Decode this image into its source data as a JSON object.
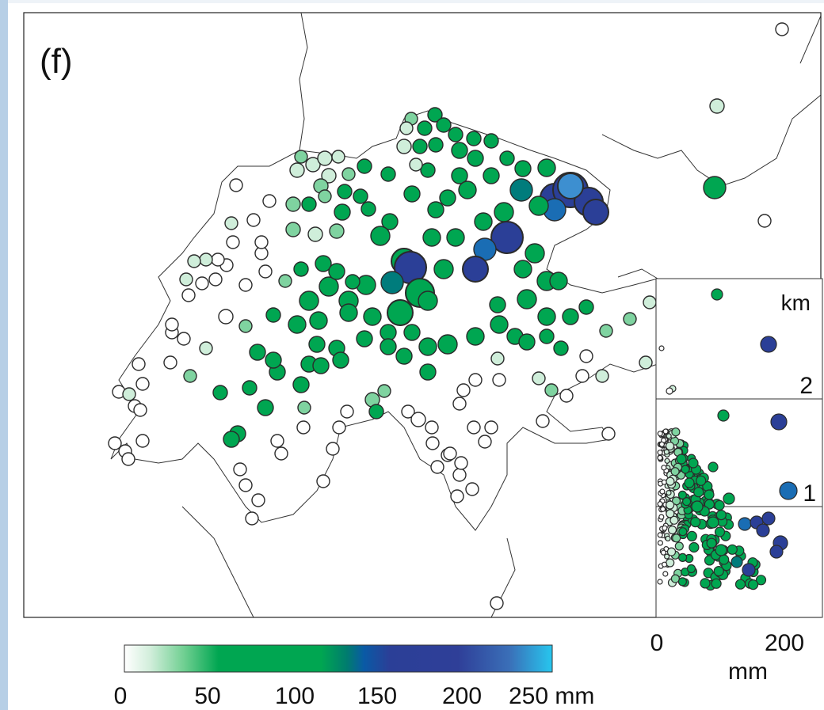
{
  "panel_label": "(f)",
  "colorbar": {
    "ticks": [
      "0",
      "50",
      "100",
      "150",
      "200",
      "250 mm"
    ],
    "stops": [
      {
        "offset": 0.0,
        "color": "#ffffff"
      },
      {
        "offset": 0.06,
        "color": "#d2eedb"
      },
      {
        "offset": 0.14,
        "color": "#6fcf91"
      },
      {
        "offset": 0.22,
        "color": "#00a651"
      },
      {
        "offset": 0.46,
        "color": "#00a651"
      },
      {
        "offset": 0.52,
        "color": "#007c6e"
      },
      {
        "offset": 0.56,
        "color": "#0a5aa5"
      },
      {
        "offset": 0.62,
        "color": "#2b3f97"
      },
      {
        "offset": 0.78,
        "color": "#2f3f98"
      },
      {
        "offset": 0.9,
        "color": "#3a6fb8"
      },
      {
        "offset": 1.0,
        "color": "#27c6ee"
      }
    ]
  },
  "inset": {
    "ylabel_top": "km",
    "y_ticks": [
      "2",
      "1"
    ],
    "x_ticks": [
      "0",
      "200"
    ],
    "x_unit": "mm"
  },
  "colors": {
    "map_line": "#333333",
    "station_stroke": "#2b2b2b",
    "low": "#ffffff",
    "mid": "#00a651",
    "high": "#2b3f97",
    "cyan_high": "#1f6fb5"
  }
}
